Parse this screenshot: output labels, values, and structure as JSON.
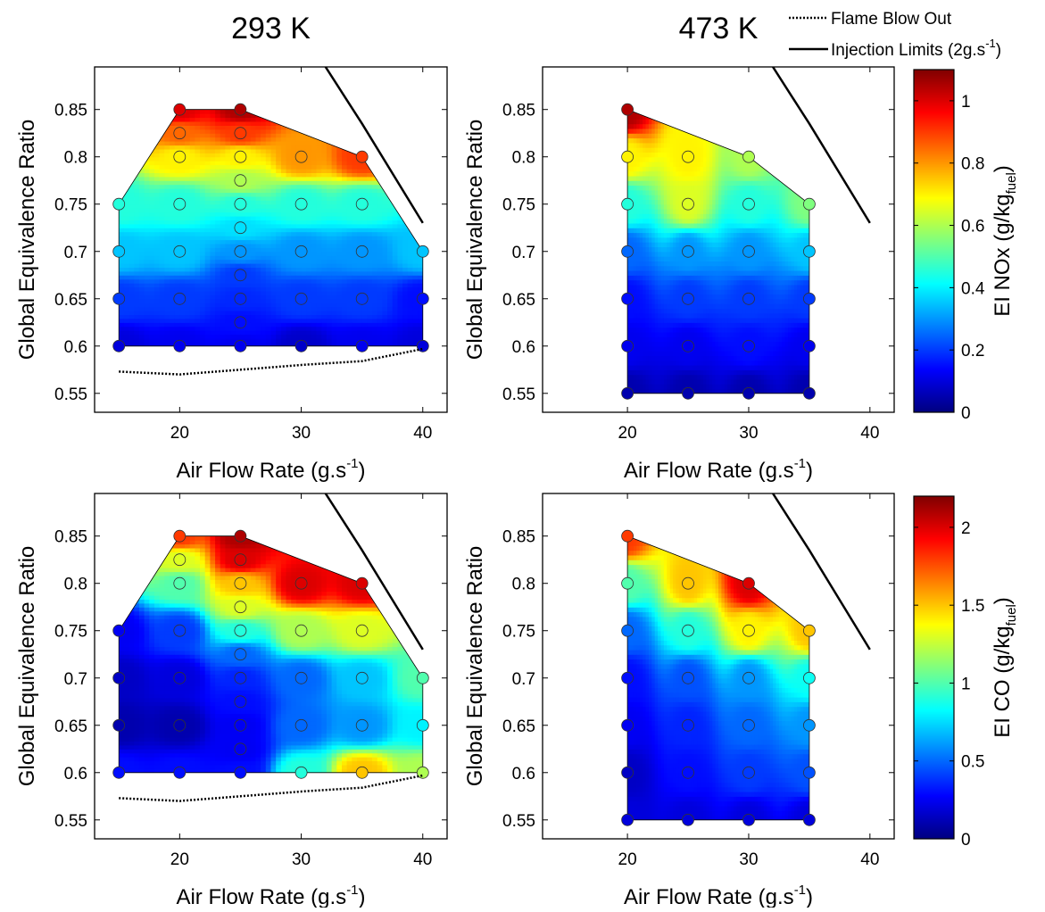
{
  "figure": {
    "column_titles": [
      "293 K",
      "473 K"
    ],
    "legend": {
      "entries": [
        {
          "label": "Flame Blow Out",
          "style": "dotted"
        },
        {
          "label": "Injection Limits (2g.s",
          "sup": "-1",
          "tail": ")",
          "style": "solid"
        }
      ]
    },
    "colormap": "jet",
    "colormap_stops": [
      "#00007f",
      "#0000ff",
      "#007fff",
      "#00ffff",
      "#7fff7f",
      "#ffff00",
      "#ff7f00",
      "#ff0000",
      "#7f0000"
    ]
  },
  "chart_data": [
    {
      "type": "contour",
      "panel": "top-left",
      "title": "293 K",
      "xlabel": "Air Flow Rate (g.s",
      "xlabel_sup": "-1",
      "xlabel_tail": ")",
      "ylabel": "Global Equivalence Ratio",
      "xlim": [
        13,
        42
      ],
      "ylim": [
        0.53,
        0.895
      ],
      "xticks": [
        20,
        30,
        40
      ],
      "yticks": [
        0.55,
        0.6,
        0.65,
        0.7,
        0.75,
        0.8,
        0.85
      ],
      "colorbar": {
        "label": "EI NOx (g/kg",
        "label_sub": "fuel",
        "label_tail": ")",
        "min": 0,
        "max": 1.1,
        "ticks": [
          0,
          0.2,
          0.4,
          0.6,
          0.8,
          1
        ]
      },
      "boundary": [
        [
          15,
          0.6
        ],
        [
          15,
          0.75
        ],
        [
          20,
          0.85
        ],
        [
          25,
          0.85
        ],
        [
          35,
          0.8
        ],
        [
          40,
          0.7
        ],
        [
          40,
          0.6
        ]
      ],
      "points": [
        {
          "x": 15,
          "y": 0.6,
          "value": 0.1
        },
        {
          "x": 15,
          "y": 0.65,
          "value": 0.2
        },
        {
          "x": 15,
          "y": 0.7,
          "value": 0.35
        },
        {
          "x": 15,
          "y": 0.75,
          "value": 0.45
        },
        {
          "x": 20,
          "y": 0.6,
          "value": 0.12
        },
        {
          "x": 20,
          "y": 0.65,
          "value": 0.2
        },
        {
          "x": 20,
          "y": 0.7,
          "value": 0.35
        },
        {
          "x": 20,
          "y": 0.75,
          "value": 0.45
        },
        {
          "x": 20,
          "y": 0.8,
          "value": 0.7
        },
        {
          "x": 20,
          "y": 0.825,
          "value": 0.85
        },
        {
          "x": 20,
          "y": 0.85,
          "value": 1.0
        },
        {
          "x": 25,
          "y": 0.6,
          "value": 0.12
        },
        {
          "x": 25,
          "y": 0.625,
          "value": 0.15
        },
        {
          "x": 25,
          "y": 0.65,
          "value": 0.18
        },
        {
          "x": 25,
          "y": 0.675,
          "value": 0.2
        },
        {
          "x": 25,
          "y": 0.7,
          "value": 0.3
        },
        {
          "x": 25,
          "y": 0.725,
          "value": 0.38
        },
        {
          "x": 25,
          "y": 0.75,
          "value": 0.45
        },
        {
          "x": 25,
          "y": 0.775,
          "value": 0.6
        },
        {
          "x": 25,
          "y": 0.8,
          "value": 0.7
        },
        {
          "x": 25,
          "y": 0.825,
          "value": 0.9
        },
        {
          "x": 25,
          "y": 0.85,
          "value": 1.05
        },
        {
          "x": 30,
          "y": 0.6,
          "value": 0.08
        },
        {
          "x": 30,
          "y": 0.65,
          "value": 0.2
        },
        {
          "x": 30,
          "y": 0.7,
          "value": 0.3
        },
        {
          "x": 30,
          "y": 0.75,
          "value": 0.45
        },
        {
          "x": 30,
          "y": 0.8,
          "value": 0.8
        },
        {
          "x": 35,
          "y": 0.6,
          "value": 0.12
        },
        {
          "x": 35,
          "y": 0.65,
          "value": 0.2
        },
        {
          "x": 35,
          "y": 0.7,
          "value": 0.3
        },
        {
          "x": 35,
          "y": 0.75,
          "value": 0.45
        },
        {
          "x": 35,
          "y": 0.8,
          "value": 0.9
        },
        {
          "x": 40,
          "y": 0.6,
          "value": 0.1
        },
        {
          "x": 40,
          "y": 0.65,
          "value": 0.15
        },
        {
          "x": 40,
          "y": 0.7,
          "value": 0.35
        }
      ],
      "flame_blow_out": [
        [
          15,
          0.573
        ],
        [
          20,
          0.57
        ],
        [
          25,
          0.575
        ],
        [
          30,
          0.58
        ],
        [
          35,
          0.584
        ],
        [
          40,
          0.597
        ]
      ],
      "injection_limit": [
        [
          32,
          0.895
        ],
        [
          35,
          0.835
        ],
        [
          40,
          0.73
        ]
      ]
    },
    {
      "type": "contour",
      "panel": "top-right",
      "title": "473 K",
      "xlabel": "Air Flow Rate (g.s",
      "xlabel_sup": "-1",
      "xlabel_tail": ")",
      "ylabel": "Global Equivalence Ratio",
      "xlim": [
        13,
        42
      ],
      "ylim": [
        0.53,
        0.895
      ],
      "xticks": [
        20,
        30,
        40
      ],
      "yticks": [
        0.55,
        0.6,
        0.65,
        0.7,
        0.75,
        0.8,
        0.85
      ],
      "colorbar": {
        "label": "EI NOx (g/kg",
        "label_sub": "fuel",
        "label_tail": ")",
        "min": 0,
        "max": 1.1,
        "ticks": [
          0,
          0.2,
          0.4,
          0.6,
          0.8,
          1
        ]
      },
      "boundary": [
        [
          20,
          0.55
        ],
        [
          20,
          0.85
        ],
        [
          30,
          0.8
        ],
        [
          35,
          0.75
        ],
        [
          35,
          0.55
        ]
      ],
      "points": [
        {
          "x": 20,
          "y": 0.55,
          "value": 0.05
        },
        {
          "x": 20,
          "y": 0.6,
          "value": 0.12
        },
        {
          "x": 20,
          "y": 0.65,
          "value": 0.15
        },
        {
          "x": 20,
          "y": 0.7,
          "value": 0.25
        },
        {
          "x": 20,
          "y": 0.75,
          "value": 0.45
        },
        {
          "x": 20,
          "y": 0.8,
          "value": 0.7
        },
        {
          "x": 20,
          "y": 0.85,
          "value": 1.05
        },
        {
          "x": 25,
          "y": 0.55,
          "value": 0.05
        },
        {
          "x": 25,
          "y": 0.6,
          "value": 0.12
        },
        {
          "x": 25,
          "y": 0.65,
          "value": 0.2
        },
        {
          "x": 25,
          "y": 0.7,
          "value": 0.3
        },
        {
          "x": 25,
          "y": 0.75,
          "value": 0.65
        },
        {
          "x": 25,
          "y": 0.8,
          "value": 0.7
        },
        {
          "x": 30,
          "y": 0.55,
          "value": 0.05
        },
        {
          "x": 30,
          "y": 0.6,
          "value": 0.15
        },
        {
          "x": 30,
          "y": 0.65,
          "value": 0.2
        },
        {
          "x": 30,
          "y": 0.7,
          "value": 0.3
        },
        {
          "x": 30,
          "y": 0.75,
          "value": 0.45
        },
        {
          "x": 30,
          "y": 0.8,
          "value": 0.6
        },
        {
          "x": 35,
          "y": 0.55,
          "value": 0.05
        },
        {
          "x": 35,
          "y": 0.6,
          "value": 0.12
        },
        {
          "x": 35,
          "y": 0.65,
          "value": 0.2
        },
        {
          "x": 35,
          "y": 0.7,
          "value": 0.35
        },
        {
          "x": 35,
          "y": 0.75,
          "value": 0.55
        }
      ],
      "injection_limit": [
        [
          32,
          0.895
        ],
        [
          35,
          0.835
        ],
        [
          40,
          0.73
        ]
      ]
    },
    {
      "type": "contour",
      "panel": "bottom-left",
      "title": "",
      "xlabel": "Air Flow Rate (g.s",
      "xlabel_sup": "-1",
      "xlabel_tail": ")",
      "ylabel": "Global Equivalence Ratio",
      "xlim": [
        13,
        42
      ],
      "ylim": [
        0.53,
        0.895
      ],
      "xticks": [
        20,
        30,
        40
      ],
      "yticks": [
        0.55,
        0.6,
        0.65,
        0.7,
        0.75,
        0.8,
        0.85
      ],
      "colorbar": {
        "label": "EI CO (g/kg",
        "label_sub": "fuel",
        "label_tail": ")",
        "min": 0,
        "max": 2.2,
        "ticks": [
          0,
          0.5,
          1,
          1.5,
          2
        ]
      },
      "boundary": [
        [
          15,
          0.6
        ],
        [
          15,
          0.75
        ],
        [
          20,
          0.85
        ],
        [
          25,
          0.85
        ],
        [
          35,
          0.8
        ],
        [
          40,
          0.7
        ],
        [
          40,
          0.6
        ]
      ],
      "points": [
        {
          "x": 15,
          "y": 0.6,
          "value": 0.3
        },
        {
          "x": 15,
          "y": 0.65,
          "value": 0.1
        },
        {
          "x": 15,
          "y": 0.7,
          "value": 0.15
        },
        {
          "x": 15,
          "y": 0.75,
          "value": 0.25
        },
        {
          "x": 20,
          "y": 0.6,
          "value": 0.3
        },
        {
          "x": 20,
          "y": 0.65,
          "value": 0.1
        },
        {
          "x": 20,
          "y": 0.7,
          "value": 0.2
        },
        {
          "x": 20,
          "y": 0.75,
          "value": 0.4
        },
        {
          "x": 20,
          "y": 0.8,
          "value": 1.0
        },
        {
          "x": 20,
          "y": 0.825,
          "value": 1.3
        },
        {
          "x": 20,
          "y": 0.85,
          "value": 1.8
        },
        {
          "x": 25,
          "y": 0.6,
          "value": 0.3
        },
        {
          "x": 25,
          "y": 0.625,
          "value": 0.25
        },
        {
          "x": 25,
          "y": 0.65,
          "value": 0.25
        },
        {
          "x": 25,
          "y": 0.675,
          "value": 0.3
        },
        {
          "x": 25,
          "y": 0.7,
          "value": 0.35
        },
        {
          "x": 25,
          "y": 0.725,
          "value": 0.5
        },
        {
          "x": 25,
          "y": 0.75,
          "value": 0.9
        },
        {
          "x": 25,
          "y": 0.775,
          "value": 1.3
        },
        {
          "x": 25,
          "y": 0.8,
          "value": 1.5
        },
        {
          "x": 25,
          "y": 0.825,
          "value": 2.0
        },
        {
          "x": 25,
          "y": 0.85,
          "value": 2.1
        },
        {
          "x": 30,
          "y": 0.6,
          "value": 0.9
        },
        {
          "x": 30,
          "y": 0.65,
          "value": 0.5
        },
        {
          "x": 30,
          "y": 0.7,
          "value": 0.5
        },
        {
          "x": 30,
          "y": 0.75,
          "value": 1.2
        },
        {
          "x": 30,
          "y": 0.8,
          "value": 2.0
        },
        {
          "x": 35,
          "y": 0.6,
          "value": 1.5
        },
        {
          "x": 35,
          "y": 0.65,
          "value": 0.6
        },
        {
          "x": 35,
          "y": 0.7,
          "value": 0.7
        },
        {
          "x": 35,
          "y": 0.75,
          "value": 1.3
        },
        {
          "x": 35,
          "y": 0.8,
          "value": 2.0
        },
        {
          "x": 40,
          "y": 0.6,
          "value": 1.2
        },
        {
          "x": 40,
          "y": 0.65,
          "value": 0.8
        },
        {
          "x": 40,
          "y": 0.7,
          "value": 1.0
        }
      ],
      "flame_blow_out": [
        [
          15,
          0.573
        ],
        [
          20,
          0.57
        ],
        [
          25,
          0.575
        ],
        [
          30,
          0.58
        ],
        [
          35,
          0.584
        ],
        [
          40,
          0.597
        ]
      ],
      "injection_limit": [
        [
          32,
          0.895
        ],
        [
          35,
          0.835
        ],
        [
          40,
          0.73
        ]
      ]
    },
    {
      "type": "contour",
      "panel": "bottom-right",
      "title": "",
      "xlabel": "Air Flow Rate (g.s",
      "xlabel_sup": "-1",
      "xlabel_tail": ")",
      "ylabel": "Global Equivalence Ratio",
      "xlim": [
        13,
        42
      ],
      "ylim": [
        0.53,
        0.895
      ],
      "xticks": [
        20,
        30,
        40
      ],
      "yticks": [
        0.55,
        0.6,
        0.65,
        0.7,
        0.75,
        0.8,
        0.85
      ],
      "colorbar": {
        "label": "EI CO (g/kg",
        "label_sub": "fuel",
        "label_tail": ")",
        "min": 0,
        "max": 2.2,
        "ticks": [
          0,
          0.5,
          1,
          1.5,
          2
        ]
      },
      "boundary": [
        [
          20,
          0.55
        ],
        [
          20,
          0.85
        ],
        [
          30,
          0.8
        ],
        [
          35,
          0.75
        ],
        [
          35,
          0.55
        ]
      ],
      "points": [
        {
          "x": 20,
          "y": 0.55,
          "value": 0.2
        },
        {
          "x": 20,
          "y": 0.6,
          "value": 0.15
        },
        {
          "x": 20,
          "y": 0.65,
          "value": 0.25
        },
        {
          "x": 20,
          "y": 0.7,
          "value": 0.3
        },
        {
          "x": 20,
          "y": 0.75,
          "value": 0.5
        },
        {
          "x": 20,
          "y": 0.8,
          "value": 1.0
        },
        {
          "x": 20,
          "y": 0.85,
          "value": 1.8
        },
        {
          "x": 25,
          "y": 0.55,
          "value": 0.2
        },
        {
          "x": 25,
          "y": 0.6,
          "value": 0.3
        },
        {
          "x": 25,
          "y": 0.65,
          "value": 0.35
        },
        {
          "x": 25,
          "y": 0.7,
          "value": 0.45
        },
        {
          "x": 25,
          "y": 0.75,
          "value": 0.9
        },
        {
          "x": 25,
          "y": 0.8,
          "value": 1.5
        },
        {
          "x": 30,
          "y": 0.55,
          "value": 0.2
        },
        {
          "x": 30,
          "y": 0.6,
          "value": 0.4
        },
        {
          "x": 30,
          "y": 0.65,
          "value": 0.5
        },
        {
          "x": 30,
          "y": 0.7,
          "value": 0.6
        },
        {
          "x": 30,
          "y": 0.75,
          "value": 1.4
        },
        {
          "x": 30,
          "y": 0.8,
          "value": 2.0
        },
        {
          "x": 35,
          "y": 0.55,
          "value": 0.2
        },
        {
          "x": 35,
          "y": 0.6,
          "value": 0.45
        },
        {
          "x": 35,
          "y": 0.65,
          "value": 0.6
        },
        {
          "x": 35,
          "y": 0.7,
          "value": 0.85
        },
        {
          "x": 35,
          "y": 0.75,
          "value": 1.5
        }
      ],
      "injection_limit": [
        [
          32,
          0.895
        ],
        [
          35,
          0.835
        ],
        [
          40,
          0.73
        ]
      ]
    }
  ]
}
